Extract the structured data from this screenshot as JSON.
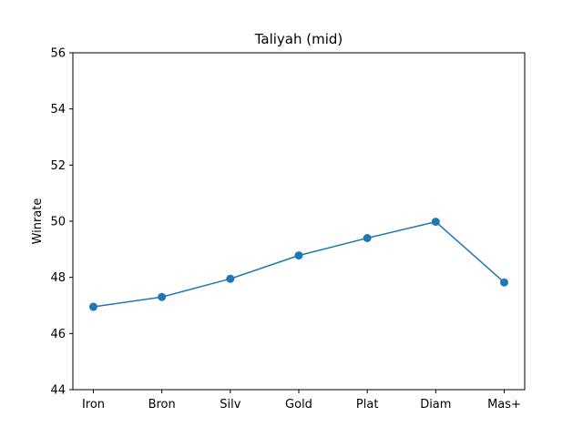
{
  "chart_data": {
    "type": "line",
    "title": "Taliyah (mid)",
    "xlabel": "",
    "ylabel": "Winrate",
    "categories": [
      "Iron",
      "Bron",
      "Silv",
      "Gold",
      "Plat",
      "Diam",
      "Mas+"
    ],
    "series": [
      {
        "values": [
          46.95,
          47.3,
          47.95,
          48.78,
          49.4,
          49.98,
          47.82
        ]
      }
    ],
    "ylim": [
      44,
      56
    ],
    "yticks": [
      44,
      46,
      48,
      50,
      52,
      54,
      56
    ],
    "grid": false,
    "colors": {
      "line": "#1f77b4",
      "marker": "#1f77b4"
    }
  }
}
